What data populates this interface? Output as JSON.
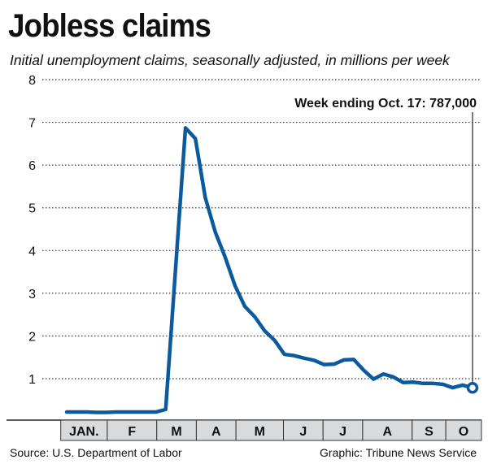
{
  "chart_data": {
    "type": "line",
    "title": "Jobless claims",
    "subtitle": "Initial unemployment claims, seasonally adjusted, in millions per week",
    "xlabel": "",
    "ylabel": "",
    "ylim": [
      0,
      8
    ],
    "yticks": [
      1,
      2,
      3,
      4,
      5,
      6,
      7,
      8
    ],
    "grid": true,
    "x_unit": "week of year",
    "month_labels": [
      {
        "label": "JAN.",
        "start": 0.4,
        "end": 5.1
      },
      {
        "label": "F",
        "start": 5.1,
        "end": 10.1
      },
      {
        "label": "M",
        "start": 10.1,
        "end": 14.1
      },
      {
        "label": "A",
        "start": 14.1,
        "end": 18.1
      },
      {
        "label": "M",
        "start": 18.1,
        "end": 22.9
      },
      {
        "label": "J",
        "start": 22.9,
        "end": 26.9
      },
      {
        "label": "J",
        "start": 26.9,
        "end": 30.9
      },
      {
        "label": "A",
        "start": 30.9,
        "end": 35.9
      },
      {
        "label": "S",
        "start": 35.9,
        "end": 39.3
      },
      {
        "label": "O",
        "start": 39.3,
        "end": 42.9
      }
    ],
    "series": [
      {
        "name": "Initial claims",
        "color": "#0b5a9e",
        "x": [
          1,
          2,
          3,
          4,
          5,
          6,
          7,
          8,
          9,
          10,
          11,
          13,
          14,
          15,
          16,
          17,
          18,
          19,
          20,
          21,
          22,
          23,
          24,
          25,
          26,
          27,
          28,
          29,
          30,
          31,
          32,
          33,
          34,
          35,
          36,
          37,
          38,
          39,
          40,
          41,
          42
        ],
        "values": [
          0.22,
          0.22,
          0.22,
          0.21,
          0.21,
          0.22,
          0.22,
          0.22,
          0.22,
          0.22,
          0.28,
          6.87,
          6.62,
          5.24,
          4.44,
          3.85,
          3.18,
          2.69,
          2.45,
          2.12,
          1.9,
          1.57,
          1.54,
          1.48,
          1.43,
          1.33,
          1.34,
          1.44,
          1.45,
          1.2,
          0.99,
          1.11,
          1.04,
          0.91,
          0.92,
          0.89,
          0.89,
          0.87,
          0.79,
          0.85,
          0.787
        ]
      }
    ],
    "annotation": "Week ending Oct. 17: 787,000",
    "source": "Source: U.S. Department of Labor",
    "credit": "Graphic: Tribune News Service"
  }
}
